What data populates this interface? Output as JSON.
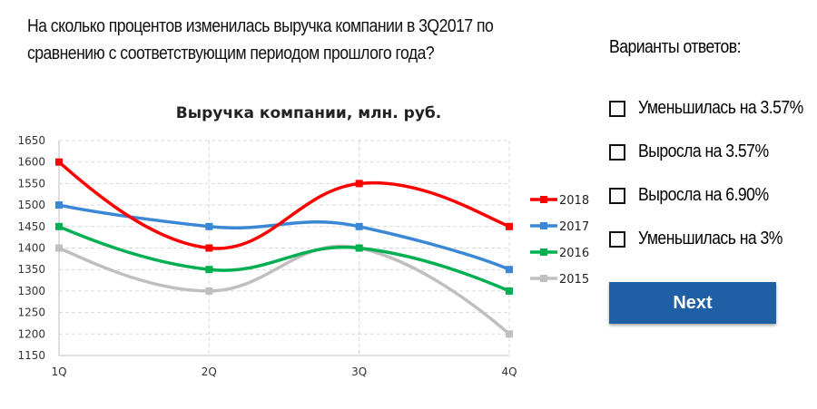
{
  "question": "На сколько процентов изменилась выручка компании в 3Q2017 по сравнению с соответствующим периодом прошлого года?",
  "options_title": "Варианты ответов:",
  "options": [
    {
      "label": "Уменьшилась на 3.57%"
    },
    {
      "label": "Выросла на 3.57%"
    },
    {
      "label": "Выросла на 6.90%"
    },
    {
      "label": "Уменьшилась на 3%"
    }
  ],
  "next_label": "Next",
  "chart_data": {
    "type": "line",
    "title": "Выручка компании, млн. руб.",
    "categories": [
      "1Q",
      "2Q",
      "3Q",
      "4Q"
    ],
    "ylim": [
      1150,
      1650
    ],
    "yticks": [
      1150,
      1200,
      1250,
      1300,
      1350,
      1400,
      1450,
      1500,
      1550,
      1600,
      1650
    ],
    "legend_position": "right",
    "series": [
      {
        "name": "2018",
        "color": "#ff0000",
        "values": [
          1600,
          1400,
          1550,
          1450
        ]
      },
      {
        "name": "2017",
        "color": "#3a87d6",
        "values": [
          1500,
          1450,
          1450,
          1350
        ]
      },
      {
        "name": "2016",
        "color": "#00b050",
        "values": [
          1450,
          1350,
          1400,
          1300
        ]
      },
      {
        "name": "2015",
        "color": "#bfbfbf",
        "values": [
          1400,
          1300,
          1400,
          1200
        ]
      }
    ]
  }
}
